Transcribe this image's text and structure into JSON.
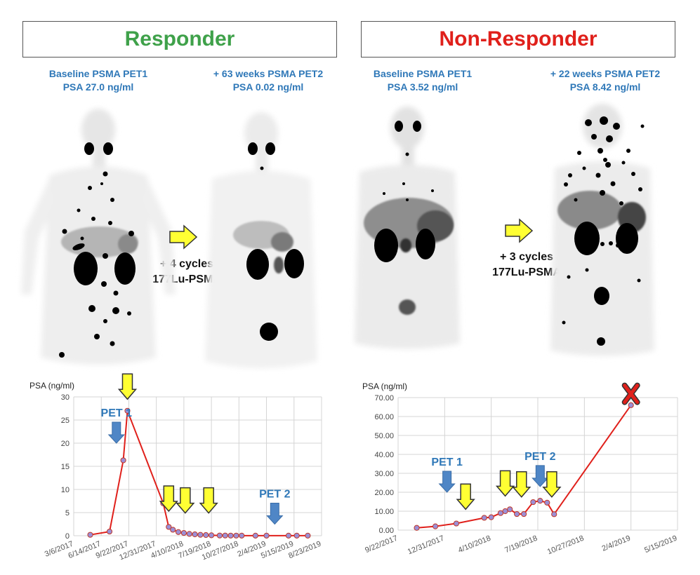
{
  "responder": {
    "title": "Responder",
    "pet1": {
      "line1": "Baseline PSMA PET1",
      "line2": "PSA 27.0 ng/ml"
    },
    "pet2": {
      "line1": "+ 63 weeks PSMA PET2",
      "line2": "PSA 0.02 ng/ml"
    },
    "treatment": {
      "line1": "+ 4 cycles",
      "line2": "177Lu-PSMA"
    }
  },
  "non_responder": {
    "title": "Non-Responder",
    "pet1": {
      "line1": "Baseline PSMA PET1",
      "line2": "PSA 3.52 ng/ml"
    },
    "pet2": {
      "line1": "+ 22 weeks PSMA PET2",
      "line2": "PSA 8.42 ng/ml"
    },
    "treatment": {
      "line1": "+ 3 cycles",
      "line2": "177Lu-PSMA"
    }
  },
  "colors": {
    "responder_title": "#3fa14a",
    "non_responder_title": "#e0201b",
    "label_blue": "#2f78b8",
    "line_red": "#e0201b",
    "marker_fill": "#9b8fd6",
    "arrow_yellow": "#ffff33",
    "arrow_blue": "#4f86c6",
    "x_mark": "#e0201b"
  },
  "chart_data": [
    {
      "type": "line",
      "ylabel": "PSA (ng/ml)",
      "ylim": [
        0,
        30
      ],
      "yticks": [
        0,
        5,
        10,
        15,
        20,
        25,
        30
      ],
      "xticks": [
        "3/6/2017",
        "6/14/2017",
        "9/22/2017",
        "12/31/2017",
        "4/10/2018",
        "7/19/2018",
        "10/27/2018",
        "2/4/2019",
        "5/15/2019",
        "8/23/2019"
      ],
      "grid": true,
      "series": [
        {
          "name": "PSA",
          "points": [
            {
              "x": 0.6,
              "y": 0.2
            },
            {
              "x": 1.3,
              "y": 0.9
            },
            {
              "x": 1.8,
              "y": 16.3
            },
            {
              "x": 1.95,
              "y": 27.0
            },
            {
              "x": 3.25,
              "y": 7.0
            },
            {
              "x": 3.45,
              "y": 1.9
            },
            {
              "x": 3.6,
              "y": 1.3
            },
            {
              "x": 3.8,
              "y": 0.8
            },
            {
              "x": 4.0,
              "y": 0.6
            },
            {
              "x": 4.2,
              "y": 0.4
            },
            {
              "x": 4.4,
              "y": 0.3
            },
            {
              "x": 4.6,
              "y": 0.2
            },
            {
              "x": 4.8,
              "y": 0.15
            },
            {
              "x": 5.0,
              "y": 0.1
            },
            {
              "x": 5.3,
              "y": 0.05
            },
            {
              "x": 5.5,
              "y": 0.05
            },
            {
              "x": 5.7,
              "y": 0.03
            },
            {
              "x": 5.9,
              "y": 0.03
            },
            {
              "x": 6.1,
              "y": 0.02
            },
            {
              "x": 6.6,
              "y": 0.02
            },
            {
              "x": 7.0,
              "y": 0.02
            },
            {
              "x": 7.8,
              "y": 0.02
            },
            {
              "x": 8.1,
              "y": 0.02
            },
            {
              "x": 8.5,
              "y": 0.02
            }
          ]
        }
      ],
      "annotations": [
        {
          "type": "text_arrow",
          "label": "PET 1",
          "x": 1.55,
          "y": 20
        },
        {
          "type": "text_arrow",
          "label": "PET 2",
          "x": 7.3,
          "y": 2.5
        },
        {
          "type": "cycle_arrow",
          "x": 1.95,
          "y": 29.5
        },
        {
          "type": "cycle_arrow",
          "x": 3.45,
          "y": 5.3
        },
        {
          "type": "cycle_arrow",
          "x": 4.05,
          "y": 4.9
        },
        {
          "type": "cycle_arrow",
          "x": 4.9,
          "y": 4.9
        }
      ]
    },
    {
      "type": "line",
      "ylabel": "PSA (ng/ml)",
      "ylim": [
        0,
        70
      ],
      "yticks": [
        "0.00",
        "10.00",
        "20.00",
        "30.00",
        "40.00",
        "50.00",
        "60.00",
        "70.00"
      ],
      "xticks": [
        "9/22/2017",
        "12/31/2017",
        "4/10/2018",
        "7/19/2018",
        "10/27/2018",
        "2/4/2019",
        "5/15/2019"
      ],
      "grid": true,
      "series": [
        {
          "name": "PSA",
          "points": [
            {
              "x": 0.4,
              "y": 1.2
            },
            {
              "x": 0.8,
              "y": 2.0
            },
            {
              "x": 1.25,
              "y": 3.5
            },
            {
              "x": 1.85,
              "y": 6.5
            },
            {
              "x": 2.0,
              "y": 6.8
            },
            {
              "x": 2.2,
              "y": 9.0
            },
            {
              "x": 2.3,
              "y": 10.0
            },
            {
              "x": 2.4,
              "y": 11.0
            },
            {
              "x": 2.55,
              "y": 8.5
            },
            {
              "x": 2.7,
              "y": 8.5
            },
            {
              "x": 2.9,
              "y": 14.8
            },
            {
              "x": 3.05,
              "y": 15.5
            },
            {
              "x": 3.2,
              "y": 14.5
            },
            {
              "x": 3.35,
              "y": 8.4
            },
            {
              "x": 5.0,
              "y": 66.0
            }
          ]
        }
      ],
      "annotations": [
        {
          "type": "text_arrow",
          "label": "PET 1",
          "x": 1.05,
          "y": 20
        },
        {
          "type": "text_arrow",
          "label": "PET 2",
          "x": 3.05,
          "y": 23
        },
        {
          "type": "cycle_arrow",
          "x": 1.45,
          "y": 11
        },
        {
          "type": "cycle_arrow",
          "x": 2.3,
          "y": 18
        },
        {
          "type": "cycle_arrow",
          "x": 2.65,
          "y": 17.5
        },
        {
          "type": "cycle_arrow",
          "x": 3.3,
          "y": 17.5
        },
        {
          "type": "x_mark",
          "x": 5.0,
          "y": 72
        }
      ]
    }
  ]
}
